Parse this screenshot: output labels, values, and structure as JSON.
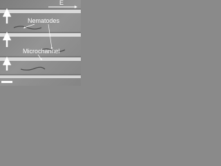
{
  "annotations": {
    "field": "E",
    "nematodes": "Nematodes",
    "microchannel": "Microchannel"
  }
}
